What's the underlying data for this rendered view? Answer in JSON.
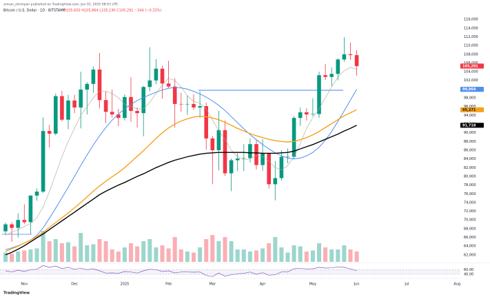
{
  "header": {
    "publisher": "arman_shirinyan published on TradingView.com, Jun 01, 2025 08:03 UTC",
    "symbol": "Bitcoin / U.S. Dollar · 1D · BITSTAMP",
    "ohlc": "O105,650 H105,864 L105,190 C105,291 −344 (−0.33%)"
  },
  "footer": {
    "brand": "TradingView"
  },
  "chart_data": {
    "type": "candlestick",
    "categories": [
      null,
      null,
      null,
      "Nov",
      null,
      null,
      null,
      null,
      null,
      null,
      null,
      "Dec",
      null,
      null,
      null,
      null,
      null,
      null,
      null,
      "2025",
      null,
      null,
      null,
      null,
      null,
      null,
      "Feb",
      null,
      null,
      null,
      null,
      null,
      null,
      "Mar",
      null,
      null,
      null,
      null,
      null,
      null,
      null,
      "Apr",
      null,
      null,
      null,
      null,
      null,
      null,
      null,
      "May",
      null,
      null,
      null,
      null,
      null,
      null,
      "Jun",
      null,
      null,
      null,
      null,
      null,
      null,
      null,
      "Jul",
      null,
      null,
      null,
      null,
      null,
      null,
      null,
      "Aug"
    ],
    "open": [
      67400,
      69000,
      68200,
      70000,
      69500,
      75600,
      76500,
      90400,
      89800,
      98400,
      93000,
      97400,
      95800,
      99900,
      101200,
      104500,
      97500,
      94800,
      94200,
      93400,
      98200,
      95000,
      94500,
      100500,
      102000,
      104700,
      101300,
      100600,
      96600,
      96500,
      96600,
      95800,
      96100,
      88700,
      86000,
      90600,
      80700,
      83700,
      84100,
      84200,
      87400,
      82600,
      85200,
      78200,
      79600,
      84500,
      84500,
      93400,
      94700,
      94200,
      94300,
      103200,
      102800,
      103500,
      106800,
      108000,
      107800,
      null,
      null,
      null,
      null,
      null,
      null,
      null,
      null,
      null,
      null,
      null,
      null,
      null,
      null,
      null,
      null
    ],
    "high": [
      69400,
      69500,
      71500,
      73600,
      75600,
      77200,
      93500,
      91800,
      99000,
      99600,
      98700,
      98700,
      104000,
      101600,
      105200,
      108300,
      99500,
      99900,
      95500,
      98800,
      102700,
      95800,
      100700,
      109600,
      106900,
      105400,
      106500,
      102500,
      99200,
      98500,
      98800,
      99500,
      96900,
      89300,
      95000,
      92800,
      84100,
      85300,
      87400,
      88700,
      88300,
      88500,
      85200,
      83500,
      86000,
      86400,
      93800,
      95800,
      95600,
      97900,
      104000,
      105800,
      105000,
      107100,
      111900,
      110700,
      108900,
      null,
      null,
      null,
      null,
      null,
      null,
      null,
      null,
      null,
      null,
      null,
      null,
      null,
      null,
      null,
      null
    ],
    "low": [
      66800,
      65000,
      66000,
      69000,
      66800,
      74400,
      76200,
      86600,
      89400,
      92600,
      90800,
      94500,
      91000,
      94200,
      99200,
      95600,
      92200,
      93500,
      91500,
      92800,
      92500,
      91200,
      89200,
      99500,
      101100,
      97800,
      100300,
      91200,
      94800,
      94100,
      95200,
      93400,
      86100,
      78200,
      81400,
      80100,
      76600,
      81200,
      81200,
      83200,
      81600,
      81300,
      77200,
      74500,
      79000,
      83000,
      83900,
      91600,
      92800,
      93800,
      93400,
      102100,
      100700,
      102000,
      106300,
      106700,
      103100,
      null,
      null,
      null,
      null,
      null,
      null,
      null,
      null,
      null,
      null,
      null,
      null,
      null,
      null,
      null,
      null
    ],
    "close": [
      69000,
      68200,
      70000,
      69500,
      75600,
      76500,
      90400,
      89800,
      98400,
      93000,
      97400,
      95800,
      99900,
      101200,
      104500,
      97500,
      94800,
      94200,
      93400,
      98200,
      95000,
      94500,
      100500,
      102000,
      104700,
      101300,
      100600,
      96600,
      96500,
      96600,
      95800,
      96100,
      88700,
      86000,
      90600,
      80700,
      83700,
      84100,
      84200,
      87400,
      82600,
      85200,
      78200,
      79600,
      84500,
      84500,
      93400,
      94700,
      94200,
      94300,
      103200,
      102800,
      103500,
      106800,
      108000,
      107800,
      105291,
      null,
      null,
      null,
      null,
      null,
      null,
      null,
      null,
      null,
      null,
      null,
      null,
      null,
      null,
      null,
      null
    ],
    "last_label": "105,291",
    "up_color": "#089981",
    "down_color": "#f23645",
    "volume": [
      9000,
      8000,
      10000,
      11000,
      12000,
      13000,
      30000,
      20000,
      22000,
      18000,
      19000,
      15000,
      28000,
      16000,
      17000,
      22000,
      20000,
      12000,
      10000,
      14000,
      18000,
      15000,
      20000,
      22000,
      14000,
      16000,
      13000,
      24000,
      12000,
      10000,
      9000,
      14000,
      22000,
      26000,
      20000,
      24000,
      20000,
      12000,
      12000,
      10000,
      11000,
      13000,
      18000,
      24000,
      14000,
      9000,
      16000,
      15000,
      10000,
      11000,
      18000,
      14000,
      12000,
      12000,
      16000,
      12000,
      10000,
      null,
      null,
      null,
      null,
      null,
      null,
      null,
      null,
      null,
      null,
      null,
      null,
      null,
      null,
      null,
      null
    ],
    "series": [
      {
        "color": "#a8a58a",
        "values": [
          66500,
          67200,
          67800,
          68500,
          69200,
          70500,
          73000,
          76500,
          80500,
          84500,
          88000,
          91000,
          94000,
          96000,
          98000,
          99500,
          99500,
          99000,
          98000,
          96500,
          96000,
          95500,
          95500,
          97000,
          99000,
          101000,
          102500,
          102000,
          100500,
          98500,
          97200,
          96800,
          95500,
          93000,
          90500,
          88500,
          86000,
          84500,
          83800,
          84000,
          84800,
          84500,
          83500,
          82000,
          81500,
          82500,
          84500,
          87500,
          91000,
          93500,
          95500,
          98000,
          100500,
          102800,
          104200,
          105000,
          104500,
          null,
          null,
          null,
          null,
          null,
          null,
          null,
          null,
          null,
          null,
          null,
          null,
          null,
          null,
          null,
          null
        ]
      },
      {
        "color": "#4f8ff0",
        "end_label": "99,964",
        "values": [
          63200,
          63600,
          64100,
          64700,
          65400,
          66500,
          68200,
          70400,
          72700,
          75100,
          77500,
          80000,
          82500,
          84900,
          87200,
          89300,
          91200,
          92900,
          94300,
          95500,
          96500,
          97400,
          98100,
          98700,
          99300,
          99800,
          100200,
          100400,
          100300,
          100000,
          99500,
          98900,
          98200,
          97300,
          96300,
          95100,
          93700,
          92300,
          90900,
          89600,
          88400,
          87300,
          86300,
          85400,
          84700,
          84200,
          84000,
          84200,
          84700,
          85500,
          86700,
          88300,
          90300,
          92600,
          95000,
          97500,
          99964,
          null,
          null,
          null,
          null,
          null,
          null,
          null,
          null,
          null,
          null,
          null,
          null,
          null,
          null,
          null,
          null
        ]
      },
      {
        "color": "#f5a21b",
        "end_label": "95,271",
        "values": [
          62800,
          63400,
          64000,
          64700,
          65400,
          66200,
          67200,
          68300,
          69400,
          70500,
          71600,
          72800,
          74000,
          75300,
          76600,
          77800,
          78900,
          79900,
          80900,
          82000,
          83300,
          84600,
          85900,
          87300,
          88700,
          90000,
          91100,
          92000,
          92700,
          93200,
          93600,
          93800,
          93700,
          93400,
          93000,
          92400,
          91700,
          91000,
          90400,
          89800,
          89300,
          88900,
          88500,
          88200,
          88000,
          87900,
          88000,
          88400,
          88900,
          89500,
          90300,
          91200,
          92100,
          93000,
          93900,
          94600,
          95271,
          null,
          null,
          null,
          null,
          null,
          null,
          null,
          null,
          null,
          null,
          null,
          null,
          null,
          null,
          null,
          null
        ]
      },
      {
        "color": "#000000",
        "end_label": "91,718",
        "values": [
          62000,
          62600,
          63300,
          64100,
          65000,
          65900,
          66800,
          67800,
          68800,
          69800,
          70800,
          71800,
          72800,
          73800,
          74800,
          75800,
          76600,
          77300,
          78000,
          78600,
          79300,
          80000,
          80600,
          81300,
          82000,
          82600,
          83200,
          83700,
          84100,
          84500,
          84800,
          85100,
          85300,
          85400,
          85500,
          85500,
          85500,
          85500,
          85500,
          85400,
          85400,
          85300,
          85300,
          85300,
          85400,
          85500,
          85800,
          86300,
          86800,
          87300,
          87900,
          88500,
          89100,
          89700,
          90400,
          91000,
          91718,
          null,
          null,
          null,
          null,
          null,
          null,
          null,
          null,
          null,
          null,
          null,
          null,
          null,
          null,
          null,
          null
        ]
      }
    ],
    "ylim": [
      60400,
      117600
    ],
    "yticks": [
      {
        "value": 62000,
        "label": "62,000"
      },
      {
        "value": 64000,
        "label": "64,000"
      },
      {
        "value": 66000,
        "label": "66,000"
      },
      {
        "value": 68000,
        "label": "68,000"
      },
      {
        "value": 70000,
        "label": "70,000"
      },
      {
        "value": 72000,
        "label": "72,000"
      },
      {
        "value": 74000,
        "label": "74,000"
      },
      {
        "value": 76000,
        "label": "76,000"
      },
      {
        "value": 78000,
        "label": "78,000"
      },
      {
        "value": 80000,
        "label": "80,000"
      },
      {
        "value": 82000,
        "label": "82,000"
      },
      {
        "value": 84000,
        "label": "84,000"
      },
      {
        "value": 86000,
        "label": "86,000"
      },
      {
        "value": 88000,
        "label": "88,000"
      },
      {
        "value": 90000,
        "label": "90,000"
      },
      {
        "value": 92000,
        "label": "92,000"
      },
      {
        "value": 94000,
        "label": "94,000"
      },
      {
        "value": 96000,
        "label": "96,000"
      },
      {
        "value": 98000,
        "label": "98,000"
      },
      {
        "value": 100000,
        "label": "100,000"
      },
      {
        "value": 102000,
        "label": "102,000"
      },
      {
        "value": 104000,
        "label": "104,000"
      },
      {
        "value": 106000,
        "label": "106,000"
      },
      {
        "value": 108000,
        "label": "108,000"
      },
      {
        "value": 110000,
        "label": "110,000"
      },
      {
        "value": 112000,
        "label": "112,000"
      },
      {
        "value": 114000,
        "label": "114,000"
      },
      {
        "value": 116000,
        "label": "116,000"
      }
    ],
    "grid": false,
    "rsi": {
      "color": "#7e57c2",
      "ylim": [
        25,
        85
      ],
      "yticks": [
        {
          "value": 40,
          "label": "40.00"
        },
        {
          "value": 60,
          "label": "60.00"
        }
      ],
      "values": [
        55,
        50,
        58,
        52,
        60,
        62,
        78,
        70,
        76,
        65,
        70,
        62,
        66,
        60,
        64,
        55,
        45,
        46,
        44,
        52,
        50,
        45,
        55,
        62,
        60,
        52,
        55,
        46,
        50,
        50,
        49,
        50,
        35,
        30,
        45,
        32,
        38,
        42,
        44,
        50,
        40,
        47,
        36,
        38,
        50,
        50,
        64,
        66,
        63,
        64,
        70,
        67,
        68,
        72,
        70,
        63,
        56,
        null,
        null,
        null,
        null,
        null,
        null,
        null,
        null,
        null,
        null,
        null,
        null,
        null,
        null,
        null,
        null
      ]
    }
  }
}
